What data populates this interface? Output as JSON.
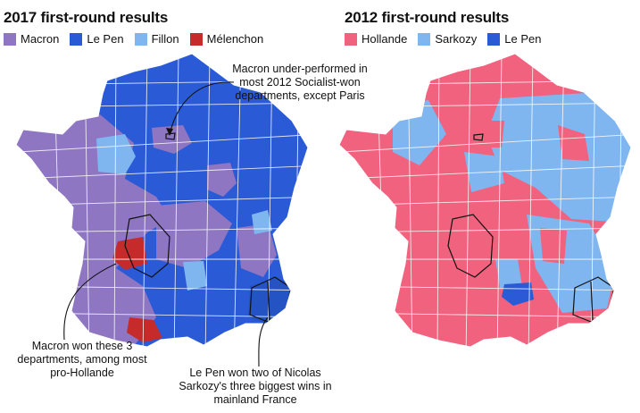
{
  "left_panel": {
    "title": "2017 first-round results",
    "legend": [
      {
        "label": "Macron",
        "color": "#8e76c2"
      },
      {
        "label": "Le Pen",
        "color": "#2a5ad6"
      },
      {
        "label": "Fillon",
        "color": "#7fb6f0"
      },
      {
        "label": "Mélenchon",
        "color": "#c52b2b"
      }
    ],
    "annotations": {
      "paris": "Macron under-performed in most 2012 Socialist-won departments, except Paris",
      "macron_three": "Macron won these 3 departments, among most pro-Hollande",
      "le_pen_two": "Le Pen won two of Nicolas Sarkozy's three biggest wins in mainland France"
    }
  },
  "right_panel": {
    "title": "2012 first-round results",
    "legend": [
      {
        "label": "Hollande",
        "color": "#f0627e"
      },
      {
        "label": "Sarkozy",
        "color": "#7fb6f0"
      },
      {
        "label": "Le Pen",
        "color": "#2a5ad6"
      }
    ]
  },
  "colors": {
    "border_white": "#ffffff",
    "outline": "#111111"
  }
}
